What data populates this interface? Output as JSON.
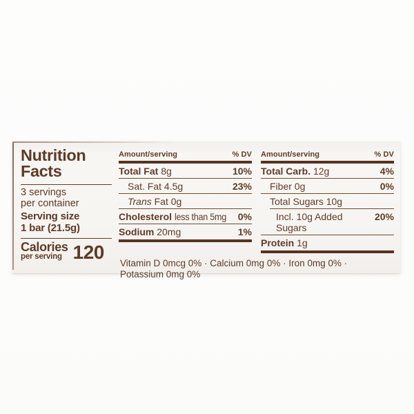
{
  "label": {
    "title_line1": "Nutrition",
    "title_line2": "Facts",
    "servings_line1": "3 servings",
    "servings_line2": "per container",
    "serving_size_label": "Serving size",
    "serving_size_value": "1 bar (21.5g)",
    "calories_label": "Calories",
    "calories_sub": "per serving",
    "calories_value": "120",
    "colors": {
      "text_brown": "#5e3b28",
      "bar_brown": "#57331e",
      "label_bg": "#f7f5f2"
    },
    "columns": [
      {
        "header_amount": "Amount/serving",
        "header_dv": "% DV",
        "rows": [
          {
            "name": "Total Fat",
            "amount": "8g",
            "dv": "10%"
          },
          {
            "name": "Sat. Fat",
            "amount": "4.5g",
            "dv": "23%"
          },
          {
            "name": "Trans",
            "amount": "Fat 0g",
            "dv": ""
          },
          {
            "name": "Cholesterol",
            "amount": "less than 5mg",
            "dv": "0%"
          },
          {
            "name": "Sodium",
            "amount": "20mg",
            "dv": "1%"
          }
        ]
      },
      {
        "header_amount": "Amount/serving",
        "header_dv": "% DV",
        "rows": [
          {
            "name": "Total Carb.",
            "amount": "12g",
            "dv": "4%"
          },
          {
            "name": "Fiber",
            "amount": "0g",
            "dv": "0%"
          },
          {
            "name": "Total Sugars",
            "amount": "10g",
            "dv": ""
          },
          {
            "name": "Incl. 10g Added Sugars",
            "amount": "",
            "dv": "20%"
          },
          {
            "name": "Protein",
            "amount": "1g",
            "dv": ""
          }
        ]
      }
    ],
    "footer_line1": "Vitamin D 0mcg 0% · Calcium 0mg 0% · Iron 0mg 0% ·",
    "footer_line2": "Potassium 0mg 0%"
  }
}
